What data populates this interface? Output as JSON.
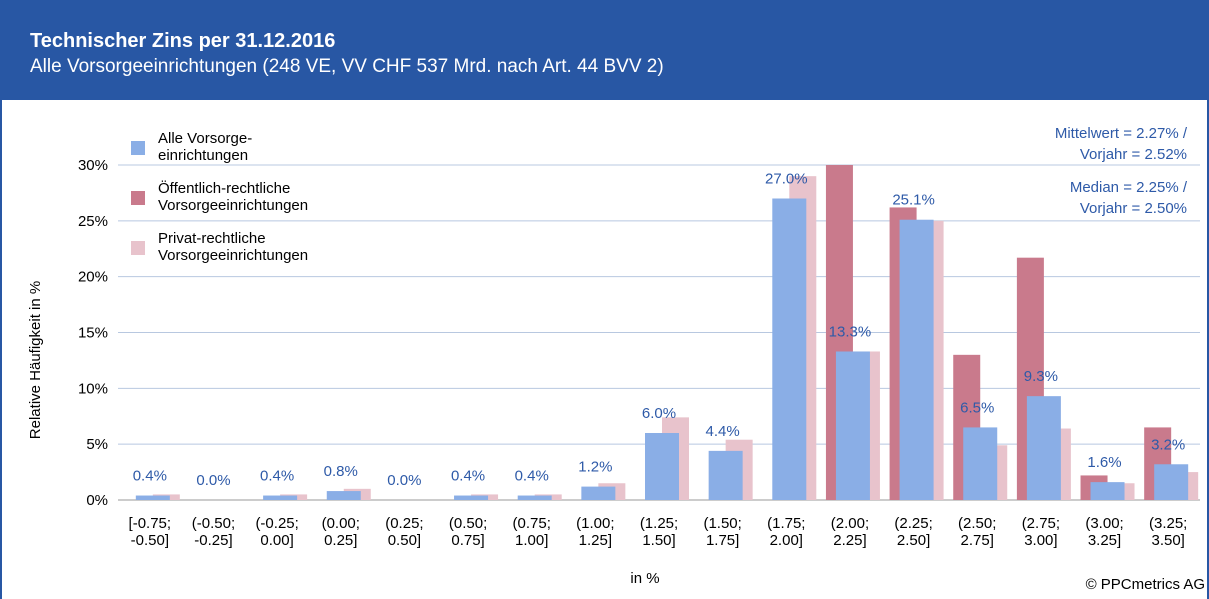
{
  "chart_data": {
    "type": "bar",
    "title": "Technischer Zins per 31.12.2016",
    "subtitle": "Alle Vorsorgeeinrichtungen (248 VE, VV CHF 537 Mrd. nach Art. 44 BVV 2)",
    "y_label": "Relative Häufigkeit in %",
    "x_label": "in %",
    "source": "© PPCmetrics AG",
    "annotations": [
      "Mittelwert = 2.27% /",
      "Vorjahr = 2.52%",
      "Median = 2.25% /",
      "Vorjahr = 2.50%"
    ],
    "categories": [
      "[-0.75;\n-0.50]",
      "(-0.50;\n-0.25]",
      "(-0.25;\n0.00]",
      "(0.00;\n0.25]",
      "(0.25;\n0.50]",
      "(0.50;\n0.75]",
      "(0.75;\n1.00]",
      "(1.00;\n1.25]",
      "(1.25;\n1.50]",
      "(1.50;\n1.75]",
      "(1.75;\n2.00]",
      "(2.00;\n2.25]",
      "(2.25;\n2.50]",
      "(2.50;\n2.75]",
      "(2.75;\n3.00]",
      "(3.00;\n3.25]",
      "(3.25;\n3.50]"
    ],
    "series": [
      {
        "name": "Alle Vorsorge-\neinrichtungen",
        "color": "#8aaee6",
        "values": [
          0.4,
          0.0,
          0.4,
          0.8,
          0.0,
          0.4,
          0.4,
          1.2,
          6.0,
          4.4,
          27.0,
          13.3,
          25.1,
          6.5,
          9.3,
          1.6,
          3.2
        ],
        "value_labels": [
          "0.4%",
          "0.0%",
          "0.4%",
          "0.8%",
          "0.0%",
          "0.4%",
          "0.4%",
          "1.2%",
          "6.0%",
          "4.4%",
          "27.0%",
          "13.3%",
          "25.1%",
          "6.5%",
          "9.3%",
          "1.6%",
          "3.2%"
        ]
      },
      {
        "name": "Öffentlich-rechtliche\nVorsorgeeinrichtungen",
        "color": "#c97a8c",
        "values": [
          0,
          0,
          0,
          0,
          0,
          0,
          0,
          0,
          0,
          0,
          0,
          30.5,
          26.2,
          13.0,
          21.7,
          2.2,
          6.5
        ]
      },
      {
        "name": "Privat-rechtliche\nVorsorgeeinrichtungen",
        "color": "#e8c3cc",
        "values": [
          0.5,
          0,
          0.5,
          1.0,
          0,
          0.5,
          0.5,
          1.5,
          7.4,
          5.4,
          29.0,
          13.3,
          25.0,
          4.9,
          6.4,
          1.5,
          2.5
        ]
      }
    ],
    "ylim": [
      0,
      30
    ],
    "yticks": [
      {
        "value": 0,
        "label": "0%"
      },
      {
        "value": 5,
        "label": "5%"
      },
      {
        "value": 10,
        "label": "10%"
      },
      {
        "value": 15,
        "label": "15%"
      },
      {
        "value": 20,
        "label": "20%"
      },
      {
        "value": 25,
        "label": "25%"
      },
      {
        "value": 30,
        "label": "30%"
      }
    ],
    "grid": true,
    "legend": "upper left"
  }
}
